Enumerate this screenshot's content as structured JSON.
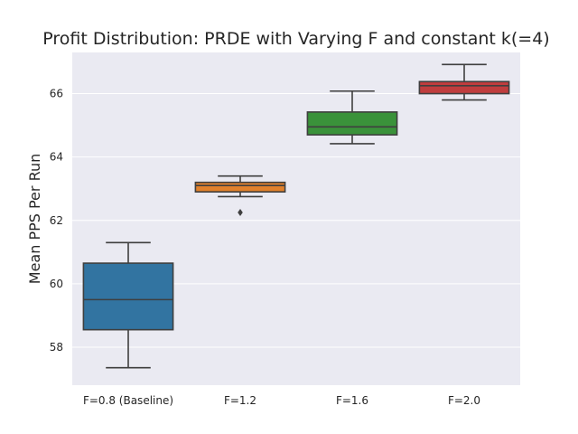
{
  "chart_data": {
    "type": "box",
    "title": "Profit Distribution: PRDE with Varying F and constant k(=4)",
    "xlabel": "",
    "ylabel": "Mean PPS Per Run",
    "ylim": [
      56.8,
      67.3
    ],
    "yticks": [
      58,
      60,
      62,
      64,
      66
    ],
    "grid": true,
    "categories": [
      "F=0.8 (Baseline)",
      "F=1.2",
      "F=1.6",
      "F=2.0"
    ],
    "boxes": [
      {
        "category": "F=0.8 (Baseline)",
        "whisker_low": 57.35,
        "q1": 58.55,
        "median": 59.5,
        "q3": 60.65,
        "whisker_high": 61.3,
        "outliers": [],
        "color": "#3274a1"
      },
      {
        "category": "F=1.2",
        "whisker_low": 62.75,
        "q1": 62.9,
        "median": 63.1,
        "q3": 63.2,
        "whisker_high": 63.4,
        "outliers": [
          62.25
        ],
        "color": "#e1812c"
      },
      {
        "category": "F=1.6",
        "whisker_low": 64.42,
        "q1": 64.7,
        "median": 64.95,
        "q3": 65.42,
        "whisker_high": 66.08,
        "outliers": [],
        "color": "#3a923a"
      },
      {
        "category": "F=2.0",
        "whisker_low": 65.8,
        "q1": 66.0,
        "median": 66.25,
        "q3": 66.38,
        "whisker_high": 66.92,
        "outliers": [],
        "color": "#c03d3e"
      }
    ]
  }
}
